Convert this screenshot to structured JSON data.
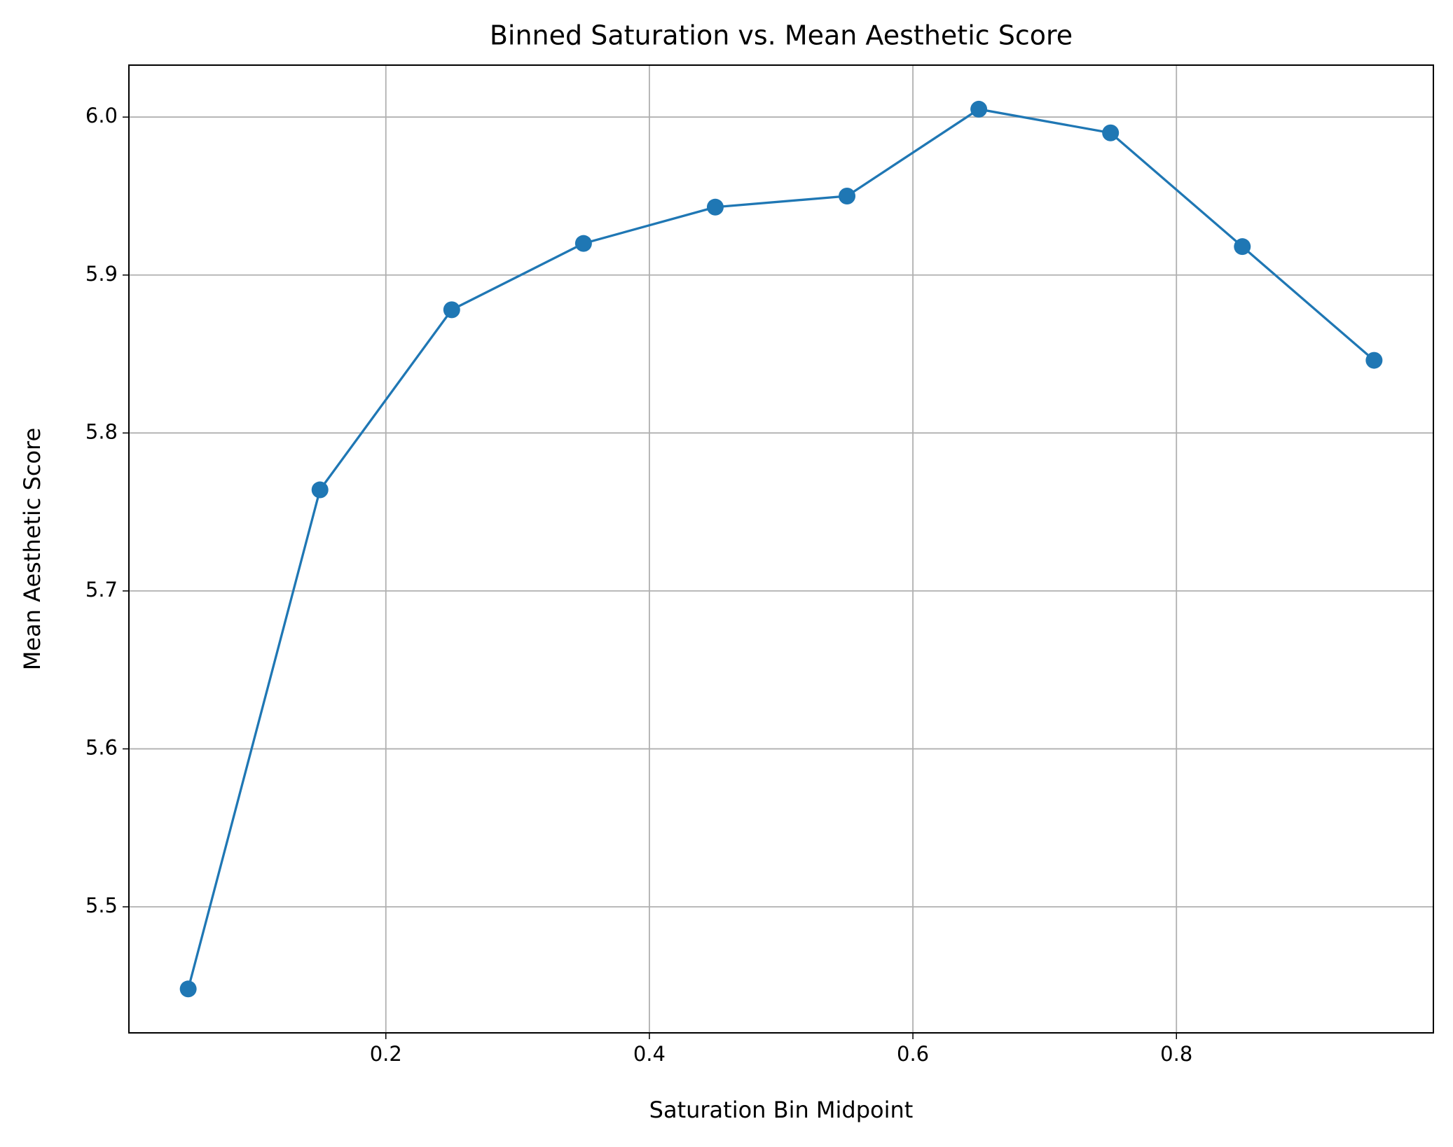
{
  "chart_data": {
    "type": "line",
    "title": "Binned Saturation vs. Mean Aesthetic Score",
    "x_label": "Saturation Bin Midpoint",
    "y_label": "Mean Aesthetic Score",
    "x": [
      0.05,
      0.15,
      0.25,
      0.35,
      0.45,
      0.55,
      0.65,
      0.75,
      0.85,
      0.95
    ],
    "values": [
      5.448,
      5.764,
      5.878,
      5.92,
      5.943,
      5.95,
      6.005,
      5.99,
      5.918,
      5.846
    ],
    "color": "#1f77b4",
    "markers": true,
    "xlim": [
      0.005,
      0.995
    ],
    "xticks": [
      0.2,
      0.4,
      0.6,
      0.8
    ],
    "ylim": [
      5.4202,
      6.0329
    ],
    "yticks": [
      5.5,
      5.6,
      5.7,
      5.8,
      5.9,
      {
        "value": 6,
        "label": "6.0"
      }
    ],
    "grid": true
  }
}
